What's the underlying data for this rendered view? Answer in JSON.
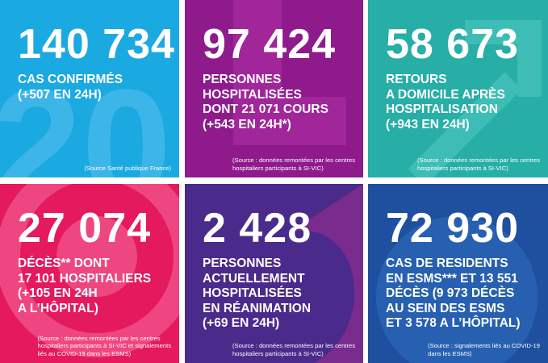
{
  "tiles": [
    {
      "number": "140 734",
      "lines": [
        "CAS CONFIRMÉS",
        "(+507 EN 24H)"
      ],
      "source": [
        "(Source Santé publique France)"
      ]
    },
    {
      "number": "97 424",
      "lines": [
        "PERSONNES",
        "HOSPITALISÉES",
        "DONT 21 071 COURS",
        "(+543 EN 24H*)"
      ],
      "source": [
        "(Source : données remontées par les centres",
        "hospitaliers participants à SI-VIC)"
      ]
    },
    {
      "number": "58 673",
      "lines": [
        "RETOURS",
        "A DOMICILE APRÈS",
        "HOSPITALISATION",
        "(+943 EN 24H)"
      ],
      "source": [
        "(Source : données remontées par les centres",
        "hospitaliers participants à SI-VIC)"
      ]
    },
    {
      "number": "27 074",
      "lines": [
        "DÉCÈS** DONT",
        "17 101 HOSPITALIERS",
        "(+105 EN 24H",
        "A L’HÔPITAL)"
      ],
      "source": [
        "(Source : données remontées par les centres",
        "hospitaliers participants à SI-VIC et signalements",
        "liés au COVID-19 dans les ESMS)"
      ]
    },
    {
      "number": "2 428",
      "lines": [
        "PERSONNES",
        "ACTUELLEMENT",
        "HOSPITALISÉES",
        "EN RÉANIMATION",
        "(+69 EN 24H)"
      ],
      "source": [
        "(Source : données remontées par les centres",
        "hospitaliers participants à SI-VIC)"
      ]
    },
    {
      "number": "72 930",
      "lines": [
        "CAS DE RESIDENTS",
        "EN ESMS*** ET 13 551",
        "DÉCÈS (9 973 DÉCÈS",
        "AU SEIN DES ESMS",
        "ET 3 578 A L’HÔPITAL)"
      ],
      "source": [
        "(Source : signalements liés au COVID-19",
        "dans les ESMS)"
      ]
    }
  ]
}
